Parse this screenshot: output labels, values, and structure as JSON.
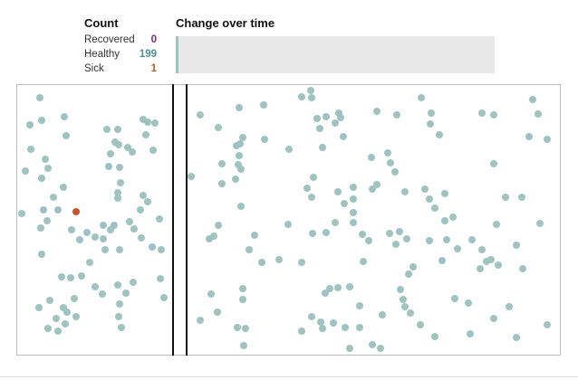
{
  "count": {
    "title": "Count",
    "rows": [
      {
        "label": "Recovered",
        "value": "0",
        "color": "#7b2b6e"
      },
      {
        "label": "Healthy",
        "value": "199",
        "color": "#4d8e93"
      },
      {
        "label": "Sick",
        "value": "1",
        "color": "#b45e2a"
      }
    ]
  },
  "chart": {
    "title": "Change over time",
    "background_color": "#e8e8e8",
    "healthy_color": "#9fc3c1"
  },
  "colors": {
    "healthy_dot": "#9fc3c1",
    "sick_dot": "#c4552b",
    "wall": "#111111"
  }
}
